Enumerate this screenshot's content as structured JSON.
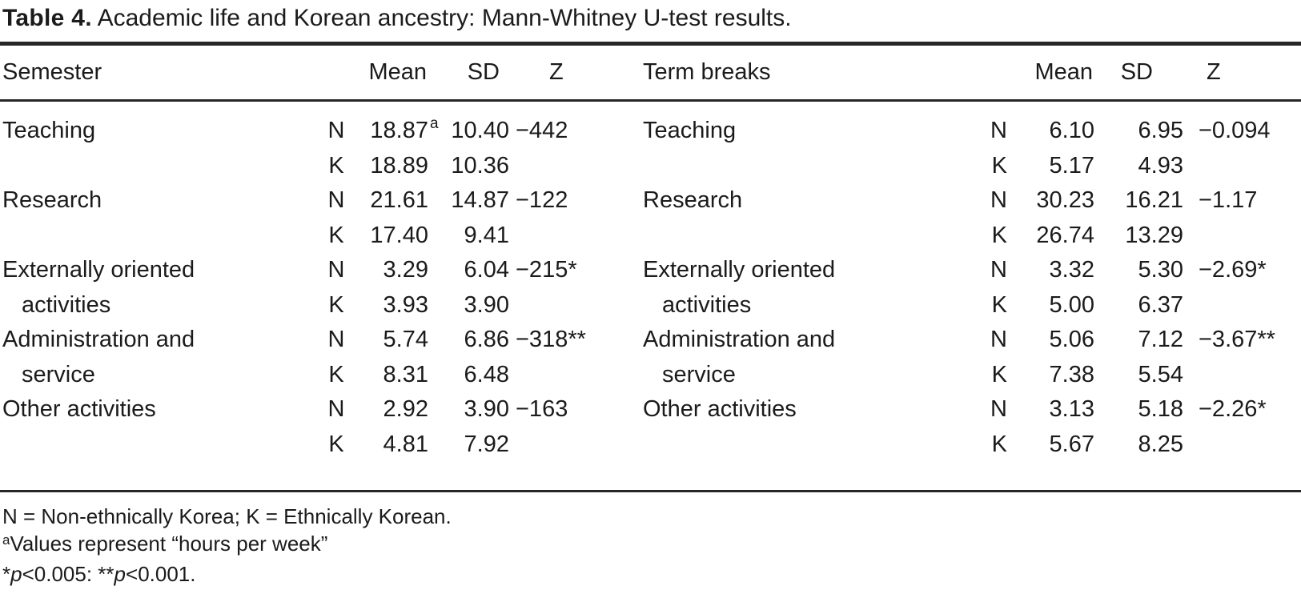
{
  "title": {
    "label": "Table 4.",
    "text": "Academic life and Korean ancestry: Mann-Whitney U-test results."
  },
  "columns": {
    "left_category": "Semester",
    "right_category": "Term breaks",
    "mean": "Mean",
    "sd": "SD",
    "z": "Z"
  },
  "group_codes": {
    "n": "N",
    "k": "K"
  },
  "left_rows": [
    {
      "label1": "Teaching",
      "label2": "",
      "n_mean": "18.87",
      "n_mean_sup": "a",
      "n_sd": "10.40",
      "z": "−442",
      "k_mean": "18.89",
      "k_sd": "10.36"
    },
    {
      "label1": "Research",
      "label2": "",
      "n_mean": "21.61",
      "n_mean_sup": "",
      "n_sd": "14.87",
      "z": "−122",
      "k_mean": "17.40",
      "k_sd": "9.41"
    },
    {
      "label1": "Externally oriented",
      "label2": "activities",
      "n_mean": "3.29",
      "n_mean_sup": "",
      "n_sd": "6.04",
      "z": "−215*",
      "k_mean": "3.93",
      "k_sd": "3.90"
    },
    {
      "label1": "Administration and",
      "label2": "service",
      "n_mean": "5.74",
      "n_mean_sup": "",
      "n_sd": "6.86",
      "z": "−318**",
      "k_mean": "8.31",
      "k_sd": "6.48"
    },
    {
      "label1": "Other activities",
      "label2": "",
      "n_mean": "2.92",
      "n_mean_sup": "",
      "n_sd": "3.90",
      "z": "−163",
      "k_mean": "4.81",
      "k_sd": "7.92"
    }
  ],
  "right_rows": [
    {
      "label1": "Teaching",
      "label2": "",
      "n_mean": "6.10",
      "n_sd": "6.95",
      "z": "−0.094",
      "k_mean": "5.17",
      "k_sd": "4.93"
    },
    {
      "label1": "Research",
      "label2": "",
      "n_mean": "30.23",
      "n_sd": "16.21",
      "z": "−1.17",
      "k_mean": "26.74",
      "k_sd": "13.29"
    },
    {
      "label1": "Externally oriented",
      "label2": "activities",
      "n_mean": "3.32",
      "n_sd": "5.30",
      "z": "−2.69*",
      "k_mean": "5.00",
      "k_sd": "6.37"
    },
    {
      "label1": "Administration and",
      "label2": "service",
      "n_mean": "5.06",
      "n_sd": "7.12",
      "z": "−3.67**",
      "k_mean": "7.38",
      "k_sd": "5.54"
    },
    {
      "label1": "Other activities",
      "label2": "",
      "n_mean": "3.13",
      "n_sd": "5.18",
      "z": "−2.26*",
      "k_mean": "5.67",
      "k_sd": "8.25"
    }
  ],
  "footnotes": {
    "line1": "N = Non-ethnically Korea; K = Ethnically Korean.",
    "line2_sup": "a",
    "line2_text": "Values represent “hours per week”",
    "line3": [
      {
        "text": "*"
      },
      {
        "text": "p"
      },
      {
        "text": "<0.005: "
      },
      {
        "text": "**"
      },
      {
        "text": "p"
      },
      {
        "text": "<0.001."
      }
    ]
  },
  "colors": {
    "text": "#1b1b1b",
    "rule": "#262626",
    "background": "#ffffff"
  }
}
